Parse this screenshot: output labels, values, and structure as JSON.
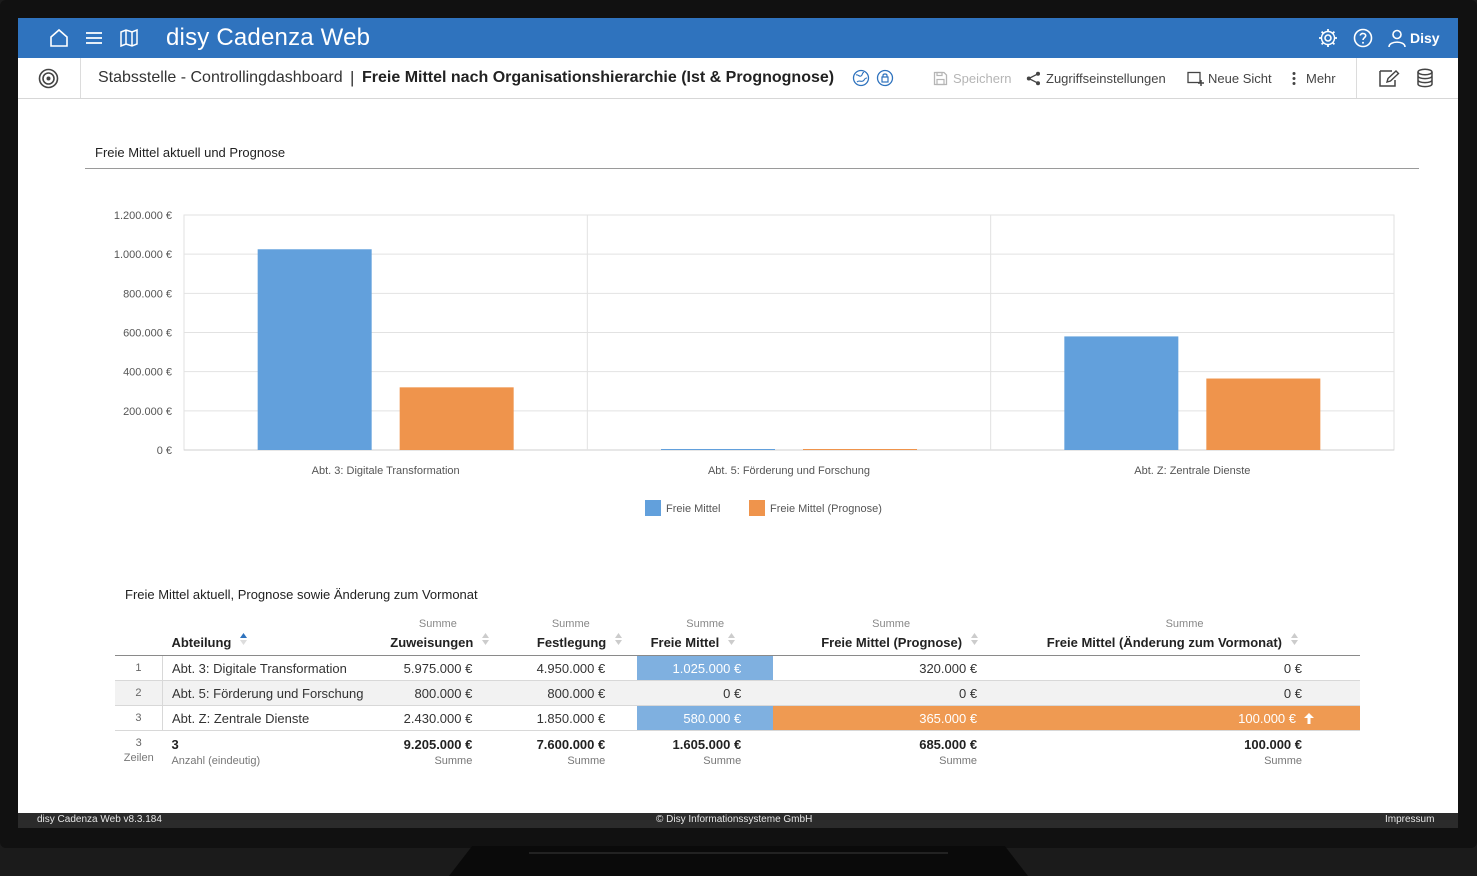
{
  "app": {
    "title": "disy Cadenza Web",
    "user": "Disy"
  },
  "subbar": {
    "breadcrumb": "Stabsstelle - Controllingdashboard",
    "separator": "|",
    "view_title": "Freie Mittel nach Organisationshierarchie (Ist & Prognognose)",
    "tools": {
      "save": "Speichern",
      "access": "Zugriffseinstellungen",
      "new_view": "Neue Sicht",
      "more": "Mehr"
    }
  },
  "chart_section": {
    "heading": "Freie Mittel aktuell und Prognose"
  },
  "chart_data": {
    "type": "bar",
    "categories": [
      "Abt. 3: Digitale Transformation",
      "Abt. 5: Förderung und Forschung",
      "Abt. Z: Zentrale Dienste"
    ],
    "series": [
      {
        "name": "Freie Mittel",
        "values": [
          1025000,
          0,
          580000
        ],
        "color": "#62a0dc"
      },
      {
        "name": "Freie Mittel (Prognose)",
        "values": [
          320000,
          0,
          365000
        ],
        "color": "#ef944c"
      }
    ],
    "ylim": [
      0,
      1200000
    ],
    "y_ticks": [
      {
        "value": 0,
        "label": "0 €"
      },
      {
        "value": 200000,
        "label": "200.000 €"
      },
      {
        "value": 400000,
        "label": "400.000 €"
      },
      {
        "value": 600000,
        "label": "600.000 €"
      },
      {
        "value": 800000,
        "label": "800.000 €"
      },
      {
        "value": 1000000,
        "label": "1.000.000 €"
      },
      {
        "value": 1200000,
        "label": "1.200.000 €"
      }
    ],
    "grid": true,
    "legend_position": "bottom-center"
  },
  "table_section": {
    "heading": "Freie Mittel aktuell, Prognose sowie Änderung zum Vormonat",
    "columns": [
      {
        "agg": "",
        "label": "Abteilung"
      },
      {
        "agg": "Summe",
        "label": "Zuweisungen"
      },
      {
        "agg": "Summe",
        "label": "Festlegung"
      },
      {
        "agg": "Summe",
        "label": "Freie Mittel"
      },
      {
        "agg": "Summe",
        "label": "Freie Mittel (Prognose)"
      },
      {
        "agg": "Summe",
        "label": "Freie Mittel (Änderung zum Vormonat)"
      }
    ],
    "rows": [
      {
        "n": "1",
        "abteilung": "Abt. 3: Digitale Transformation",
        "zuweisungen": "5.975.000 €",
        "festlegung": "4.950.000 €",
        "freie": "1.025.000 €",
        "prognose": "320.000 €",
        "aenderung": "0 €"
      },
      {
        "n": "2",
        "abteilung": "Abt. 5: Förderung und Forschung",
        "zuweisungen": "800.000 €",
        "festlegung": "800.000 €",
        "freie": "0 €",
        "prognose": "0 €",
        "aenderung": "0 €"
      },
      {
        "n": "3",
        "abteilung": "Abt. Z: Zentrale Dienste",
        "zuweisungen": "2.430.000 €",
        "festlegung": "1.850.000 €",
        "freie": "580.000 €",
        "prognose": "365.000 €",
        "aenderung": "100.000 €"
      }
    ],
    "footer": {
      "rows_count": "3",
      "rows_label": "Zeilen",
      "abteilung_value": "3",
      "abteilung_label": "Anzahl (eindeutig)",
      "zuweisungen": "9.205.000 €",
      "festlegung": "7.600.000 €",
      "freie": "1.605.000 €",
      "prognose": "685.000 €",
      "aenderung": "100.000 €",
      "agg_label": "Summe"
    }
  },
  "footer": {
    "version": "disy Cadenza Web v8.3.184",
    "copyright": "© Disy Informationssysteme GmbH",
    "imprint": "Impressum"
  }
}
